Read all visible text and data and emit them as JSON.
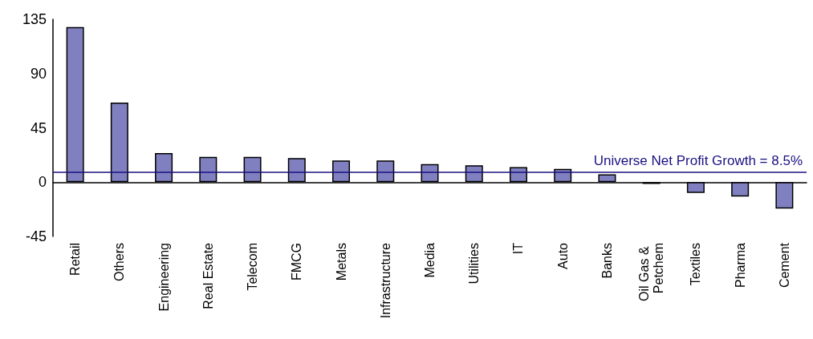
{
  "chart_data": {
    "type": "bar",
    "categories": [
      "Retail",
      "Others",
      "Engineering",
      "Real Estate",
      "Telecom",
      "FMCG",
      "Metals",
      "Infrastructure",
      "Media",
      "Utilities",
      "IT",
      "Auto",
      "Banks",
      "Oil Gas & Petchem",
      "Textiles",
      "Pharma",
      "Cement"
    ],
    "values": [
      128.5,
      66,
      24,
      21,
      21,
      20,
      18,
      18,
      15,
      14,
      12.5,
      11,
      6.5,
      -1.5,
      -9,
      -12,
      -22
    ],
    "color": "#8080c0",
    "ylim": [
      -45,
      135
    ],
    "yticks": [
      -45,
      0,
      45,
      90,
      135
    ],
    "ref_lines": [
      {
        "axis": "y",
        "value": 8.5,
        "label": "Universe Net Profit Growth = 8.5%",
        "color": "#1a1080"
      }
    ]
  }
}
